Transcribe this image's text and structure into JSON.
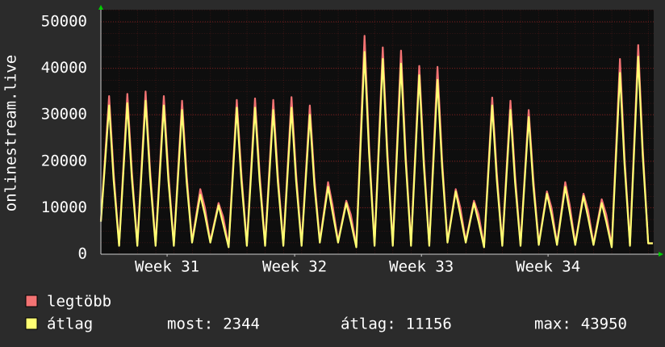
{
  "chart_data": {
    "type": "line",
    "y_label": "onlinestream.live",
    "x": [
      0,
      0.45,
      0.7,
      1,
      1.45,
      1.7,
      2,
      2.45,
      2.7,
      3,
      3.45,
      3.7,
      4,
      4.45,
      4.7,
      5,
      5.45,
      5.7,
      6,
      6.45,
      6.7,
      7,
      7.45,
      7.7,
      8,
      8.45,
      8.7,
      9,
      9.45,
      9.7,
      10,
      10.45,
      10.7,
      11,
      11.45,
      11.7,
      12,
      12.45,
      12.7,
      13,
      13.45,
      13.7,
      14,
      14.45,
      14.7,
      15,
      15.45,
      15.7,
      16,
      16.45,
      16.7,
      17,
      17.45,
      17.7,
      18,
      18.45,
      18.7,
      19,
      19.45,
      19.7,
      20,
      20.45,
      20.7,
      21,
      21.45,
      21.7,
      22,
      22.45,
      22.7,
      23,
      23.45,
      23.7,
      24,
      24.45,
      24.7,
      25,
      25.45,
      25.7,
      26,
      26.45,
      26.7,
      27,
      27.45,
      27.7,
      28,
      28.45,
      28.7,
      29,
      29.45,
      29.7,
      30,
      30.25
    ],
    "series": [
      {
        "name": "legtöbb",
        "color": "#f37373",
        "values": [
          7300,
          34000,
          17500,
          2100,
          34500,
          17800,
          2100,
          35000,
          18000,
          2100,
          34000,
          17500,
          2100,
          33000,
          17000,
          2800,
          14000,
          10000,
          2800,
          11000,
          8000,
          1800,
          33200,
          17300,
          2100,
          33500,
          17300,
          2100,
          33200,
          17000,
          2100,
          33800,
          17300,
          2100,
          32000,
          16500,
          2800,
          15500,
          10500,
          2800,
          11500,
          8500,
          1800,
          47000,
          23300,
          2100,
          44500,
          22500,
          2100,
          43800,
          22000,
          2100,
          40500,
          20800,
          2100,
          40300,
          20300,
          2800,
          14000,
          10000,
          2800,
          11500,
          8500,
          1800,
          33700,
          17500,
          2100,
          33000,
          17000,
          2100,
          31000,
          16300,
          2300,
          13500,
          10000,
          2300,
          15500,
          10500,
          2300,
          13000,
          9500,
          2300,
          11800,
          8500,
          1800,
          42000,
          21000,
          2100,
          45000,
          22800,
          2344,
          2344
        ]
      },
      {
        "name": "átlag",
        "color": "#ffff73",
        "values": [
          7000,
          32000,
          16000,
          1800,
          32500,
          16300,
          1800,
          33000,
          16500,
          1800,
          32000,
          16000,
          1800,
          31000,
          15500,
          2500,
          12800,
          8500,
          2500,
          10500,
          6500,
          1500,
          31500,
          15800,
          1800,
          31500,
          15800,
          1800,
          31000,
          15500,
          1800,
          31500,
          15800,
          1800,
          30000,
          15000,
          2500,
          14500,
          9000,
          2500,
          11000,
          7000,
          1500,
          43500,
          21800,
          1800,
          42000,
          21000,
          1800,
          41000,
          20500,
          1800,
          38500,
          19300,
          1800,
          37500,
          18800,
          2500,
          13500,
          8500,
          2500,
          11000,
          7000,
          1500,
          32000,
          16000,
          1800,
          31000,
          15500,
          1800,
          29500,
          14800,
          2000,
          13000,
          8500,
          2000,
          14500,
          9000,
          2000,
          12500,
          8000,
          2000,
          11000,
          7000,
          1500,
          39000,
          19500,
          1800,
          42500,
          21300,
          2344,
          2344
        ]
      }
    ],
    "xlim": [
      0,
      30.3
    ],
    "xticks": [
      {
        "value": 3.63,
        "label": "Week 31"
      },
      {
        "value": 10.62,
        "label": "Week 32"
      },
      {
        "value": 17.57,
        "label": "Week 33"
      },
      {
        "value": 24.51,
        "label": "Week 34"
      }
    ],
    "ylim": [
      0,
      52600
    ],
    "yticks": [
      0,
      10000,
      20000,
      30000,
      40000,
      50000
    ],
    "grid": true,
    "stats": [
      {
        "label": "most:",
        "value": 2344
      },
      {
        "label": "átlag:",
        "value": 11156
      },
      {
        "label": "max:",
        "value": 43950
      }
    ]
  }
}
